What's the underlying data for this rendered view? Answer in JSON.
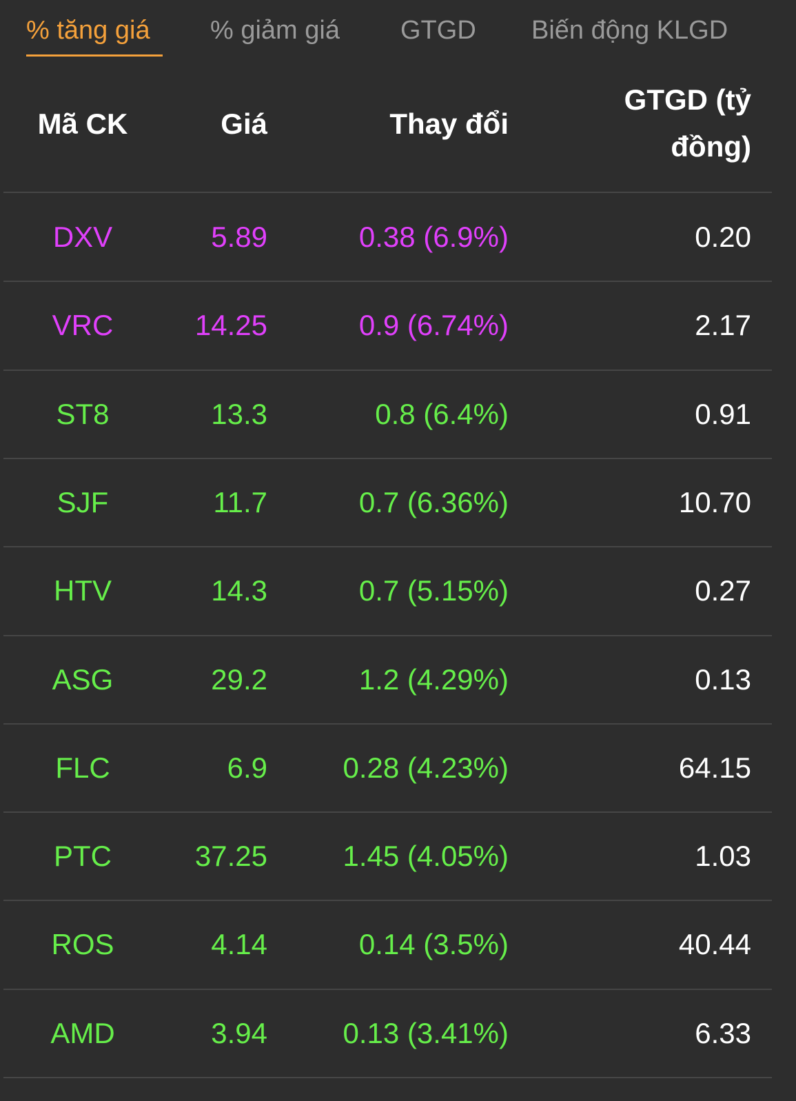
{
  "tabs": [
    {
      "label": "% tăng giá",
      "active": true
    },
    {
      "label": "% giảm giá",
      "active": false
    },
    {
      "label": "GTGD",
      "active": false
    },
    {
      "label": "Biến động KLGD",
      "active": false
    }
  ],
  "columns": {
    "code": "Mã CK",
    "price": "Giá",
    "change": "Thay đổi",
    "value_line1": "GTGD (tỷ",
    "value_line2": "đồng)"
  },
  "colors": {
    "ceiling": "#e040fb",
    "up": "#66ee4a",
    "accent": "#f5a13b",
    "background": "#2d2d2d"
  },
  "rows": [
    {
      "code": "DXV",
      "price": "5.89",
      "change": "0.38 (6.9%)",
      "value": "0.20",
      "status": "ceiling"
    },
    {
      "code": "VRC",
      "price": "14.25",
      "change": "0.9 (6.74%)",
      "value": "2.17",
      "status": "ceiling"
    },
    {
      "code": "ST8",
      "price": "13.3",
      "change": "0.8 (6.4%)",
      "value": "0.91",
      "status": "up"
    },
    {
      "code": "SJF",
      "price": "11.7",
      "change": "0.7 (6.36%)",
      "value": "10.70",
      "status": "up"
    },
    {
      "code": "HTV",
      "price": "14.3",
      "change": "0.7 (5.15%)",
      "value": "0.27",
      "status": "up"
    },
    {
      "code": "ASG",
      "price": "29.2",
      "change": "1.2 (4.29%)",
      "value": "0.13",
      "status": "up"
    },
    {
      "code": "FLC",
      "price": "6.9",
      "change": "0.28 (4.23%)",
      "value": "64.15",
      "status": "up"
    },
    {
      "code": "PTC",
      "price": "37.25",
      "change": "1.45 (4.05%)",
      "value": "1.03",
      "status": "up"
    },
    {
      "code": "ROS",
      "price": "4.14",
      "change": "0.14 (3.5%)",
      "value": "40.44",
      "status": "up"
    },
    {
      "code": "AMD",
      "price": "3.94",
      "change": "0.13 (3.41%)",
      "value": "6.33",
      "status": "up"
    }
  ]
}
